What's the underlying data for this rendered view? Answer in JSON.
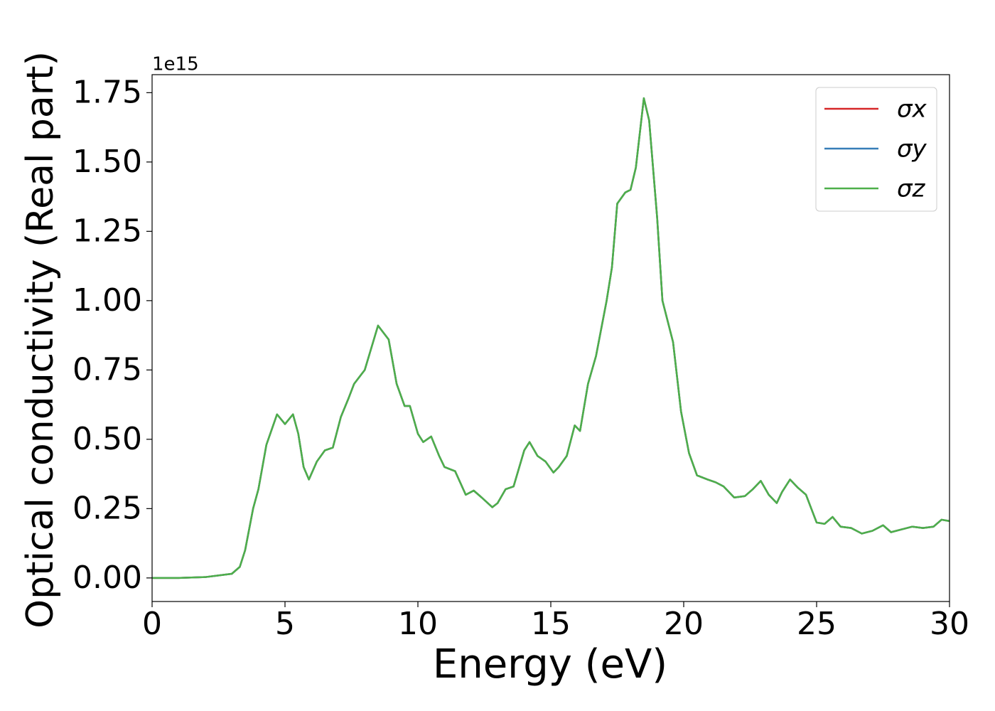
{
  "chart_data": {
    "type": "line",
    "x_label": "Energy (eV)",
    "y_label": "Optical conductivity (Real part)",
    "offset_text": "1e15",
    "xlim": [
      0,
      30
    ],
    "ylim": [
      -0.085,
      1.815
    ],
    "xticks": [
      0,
      5,
      10,
      15,
      20,
      25,
      30
    ],
    "yticks": [
      {
        "value": 0,
        "label": "0.00"
      },
      0.25,
      {
        "value": 0.5,
        "label": "0.50"
      },
      0.75,
      {
        "value": 1,
        "label": "1.00"
      },
      1.25,
      {
        "value": 1.5,
        "label": "1.50"
      },
      1.75
    ],
    "legend": "upper right",
    "x": [
      0,
      1,
      2,
      3,
      3.3,
      3.5,
      3.8,
      4.0,
      4.3,
      4.7,
      5.0,
      5.3,
      5.5,
      5.7,
      5.9,
      6.2,
      6.5,
      6.8,
      7.1,
      7.4,
      7.6,
      8.0,
      8.5,
      8.9,
      9.2,
      9.5,
      9.7,
      10.0,
      10.2,
      10.5,
      10.8,
      11.0,
      11.4,
      11.8,
      12.1,
      12.4,
      12.8,
      13.0,
      13.3,
      13.6,
      14.0,
      14.2,
      14.5,
      14.8,
      15.1,
      15.3,
      15.6,
      15.9,
      16.1,
      16.4,
      16.7,
      17.1,
      17.3,
      17.5,
      17.8,
      18.0,
      18.2,
      18.5,
      18.7,
      19.0,
      19.2,
      19.6,
      19.9,
      20.2,
      20.5,
      20.9,
      21.2,
      21.5,
      21.9,
      22.3,
      22.6,
      22.9,
      23.2,
      23.5,
      23.7,
      24.0,
      24.3,
      24.6,
      25.0,
      25.3,
      25.6,
      25.9,
      26.3,
      26.7,
      27.1,
      27.5,
      27.8,
      28.2,
      28.6,
      29.0,
      29.4,
      29.7,
      30
    ],
    "series": [
      {
        "name": "σx",
        "color": "#d62728",
        "values": [
          0,
          0,
          0.003,
          0.015,
          0.04,
          0.1,
          0.25,
          0.32,
          0.48,
          0.59,
          0.555,
          0.59,
          0.52,
          0.4,
          0.355,
          0.42,
          0.46,
          0.47,
          0.58,
          0.65,
          0.7,
          0.75,
          0.91,
          0.86,
          0.7,
          0.62,
          0.62,
          0.52,
          0.49,
          0.51,
          0.44,
          0.4,
          0.385,
          0.3,
          0.315,
          0.29,
          0.255,
          0.27,
          0.32,
          0.33,
          0.46,
          0.49,
          0.44,
          0.42,
          0.38,
          0.4,
          0.44,
          0.55,
          0.53,
          0.7,
          0.8,
          1.0,
          1.12,
          1.35,
          1.39,
          1.4,
          1.48,
          1.73,
          1.65,
          1.3,
          1.0,
          0.85,
          0.6,
          0.45,
          0.37,
          0.355,
          0.345,
          0.33,
          0.29,
          0.295,
          0.32,
          0.35,
          0.3,
          0.27,
          0.31,
          0.355,
          0.325,
          0.3,
          0.2,
          0.195,
          0.22,
          0.185,
          0.18,
          0.16,
          0.17,
          0.19,
          0.165,
          0.175,
          0.185,
          0.18,
          0.185,
          0.21,
          0.205
        ]
      },
      {
        "name": "σy",
        "color": "#377eb8",
        "values": [
          0,
          0,
          0.003,
          0.015,
          0.04,
          0.1,
          0.25,
          0.32,
          0.48,
          0.59,
          0.555,
          0.59,
          0.52,
          0.4,
          0.355,
          0.42,
          0.46,
          0.47,
          0.58,
          0.65,
          0.7,
          0.75,
          0.91,
          0.86,
          0.7,
          0.62,
          0.62,
          0.52,
          0.49,
          0.51,
          0.44,
          0.4,
          0.385,
          0.3,
          0.315,
          0.29,
          0.255,
          0.27,
          0.32,
          0.33,
          0.46,
          0.49,
          0.44,
          0.42,
          0.38,
          0.4,
          0.44,
          0.55,
          0.53,
          0.7,
          0.8,
          1.0,
          1.12,
          1.35,
          1.39,
          1.4,
          1.48,
          1.73,
          1.65,
          1.3,
          1.0,
          0.85,
          0.6,
          0.45,
          0.37,
          0.355,
          0.345,
          0.33,
          0.29,
          0.295,
          0.32,
          0.35,
          0.3,
          0.27,
          0.31,
          0.355,
          0.325,
          0.3,
          0.2,
          0.195,
          0.22,
          0.185,
          0.18,
          0.16,
          0.17,
          0.19,
          0.165,
          0.175,
          0.185,
          0.18,
          0.185,
          0.21,
          0.205
        ]
      },
      {
        "name": "σz",
        "color": "#4daf4a",
        "values": [
          0,
          0,
          0.003,
          0.015,
          0.04,
          0.1,
          0.25,
          0.32,
          0.48,
          0.59,
          0.555,
          0.59,
          0.52,
          0.4,
          0.355,
          0.42,
          0.46,
          0.47,
          0.58,
          0.65,
          0.7,
          0.75,
          0.91,
          0.86,
          0.7,
          0.62,
          0.62,
          0.52,
          0.49,
          0.51,
          0.44,
          0.4,
          0.385,
          0.3,
          0.315,
          0.29,
          0.255,
          0.27,
          0.32,
          0.33,
          0.46,
          0.49,
          0.44,
          0.42,
          0.38,
          0.4,
          0.44,
          0.55,
          0.53,
          0.7,
          0.8,
          1.0,
          1.12,
          1.35,
          1.39,
          1.4,
          1.48,
          1.73,
          1.65,
          1.3,
          1.0,
          0.85,
          0.6,
          0.45,
          0.37,
          0.355,
          0.345,
          0.33,
          0.29,
          0.295,
          0.32,
          0.35,
          0.3,
          0.27,
          0.31,
          0.355,
          0.325,
          0.3,
          0.2,
          0.195,
          0.22,
          0.185,
          0.18,
          0.16,
          0.17,
          0.19,
          0.165,
          0.175,
          0.185,
          0.18,
          0.185,
          0.21,
          0.205
        ]
      }
    ]
  }
}
